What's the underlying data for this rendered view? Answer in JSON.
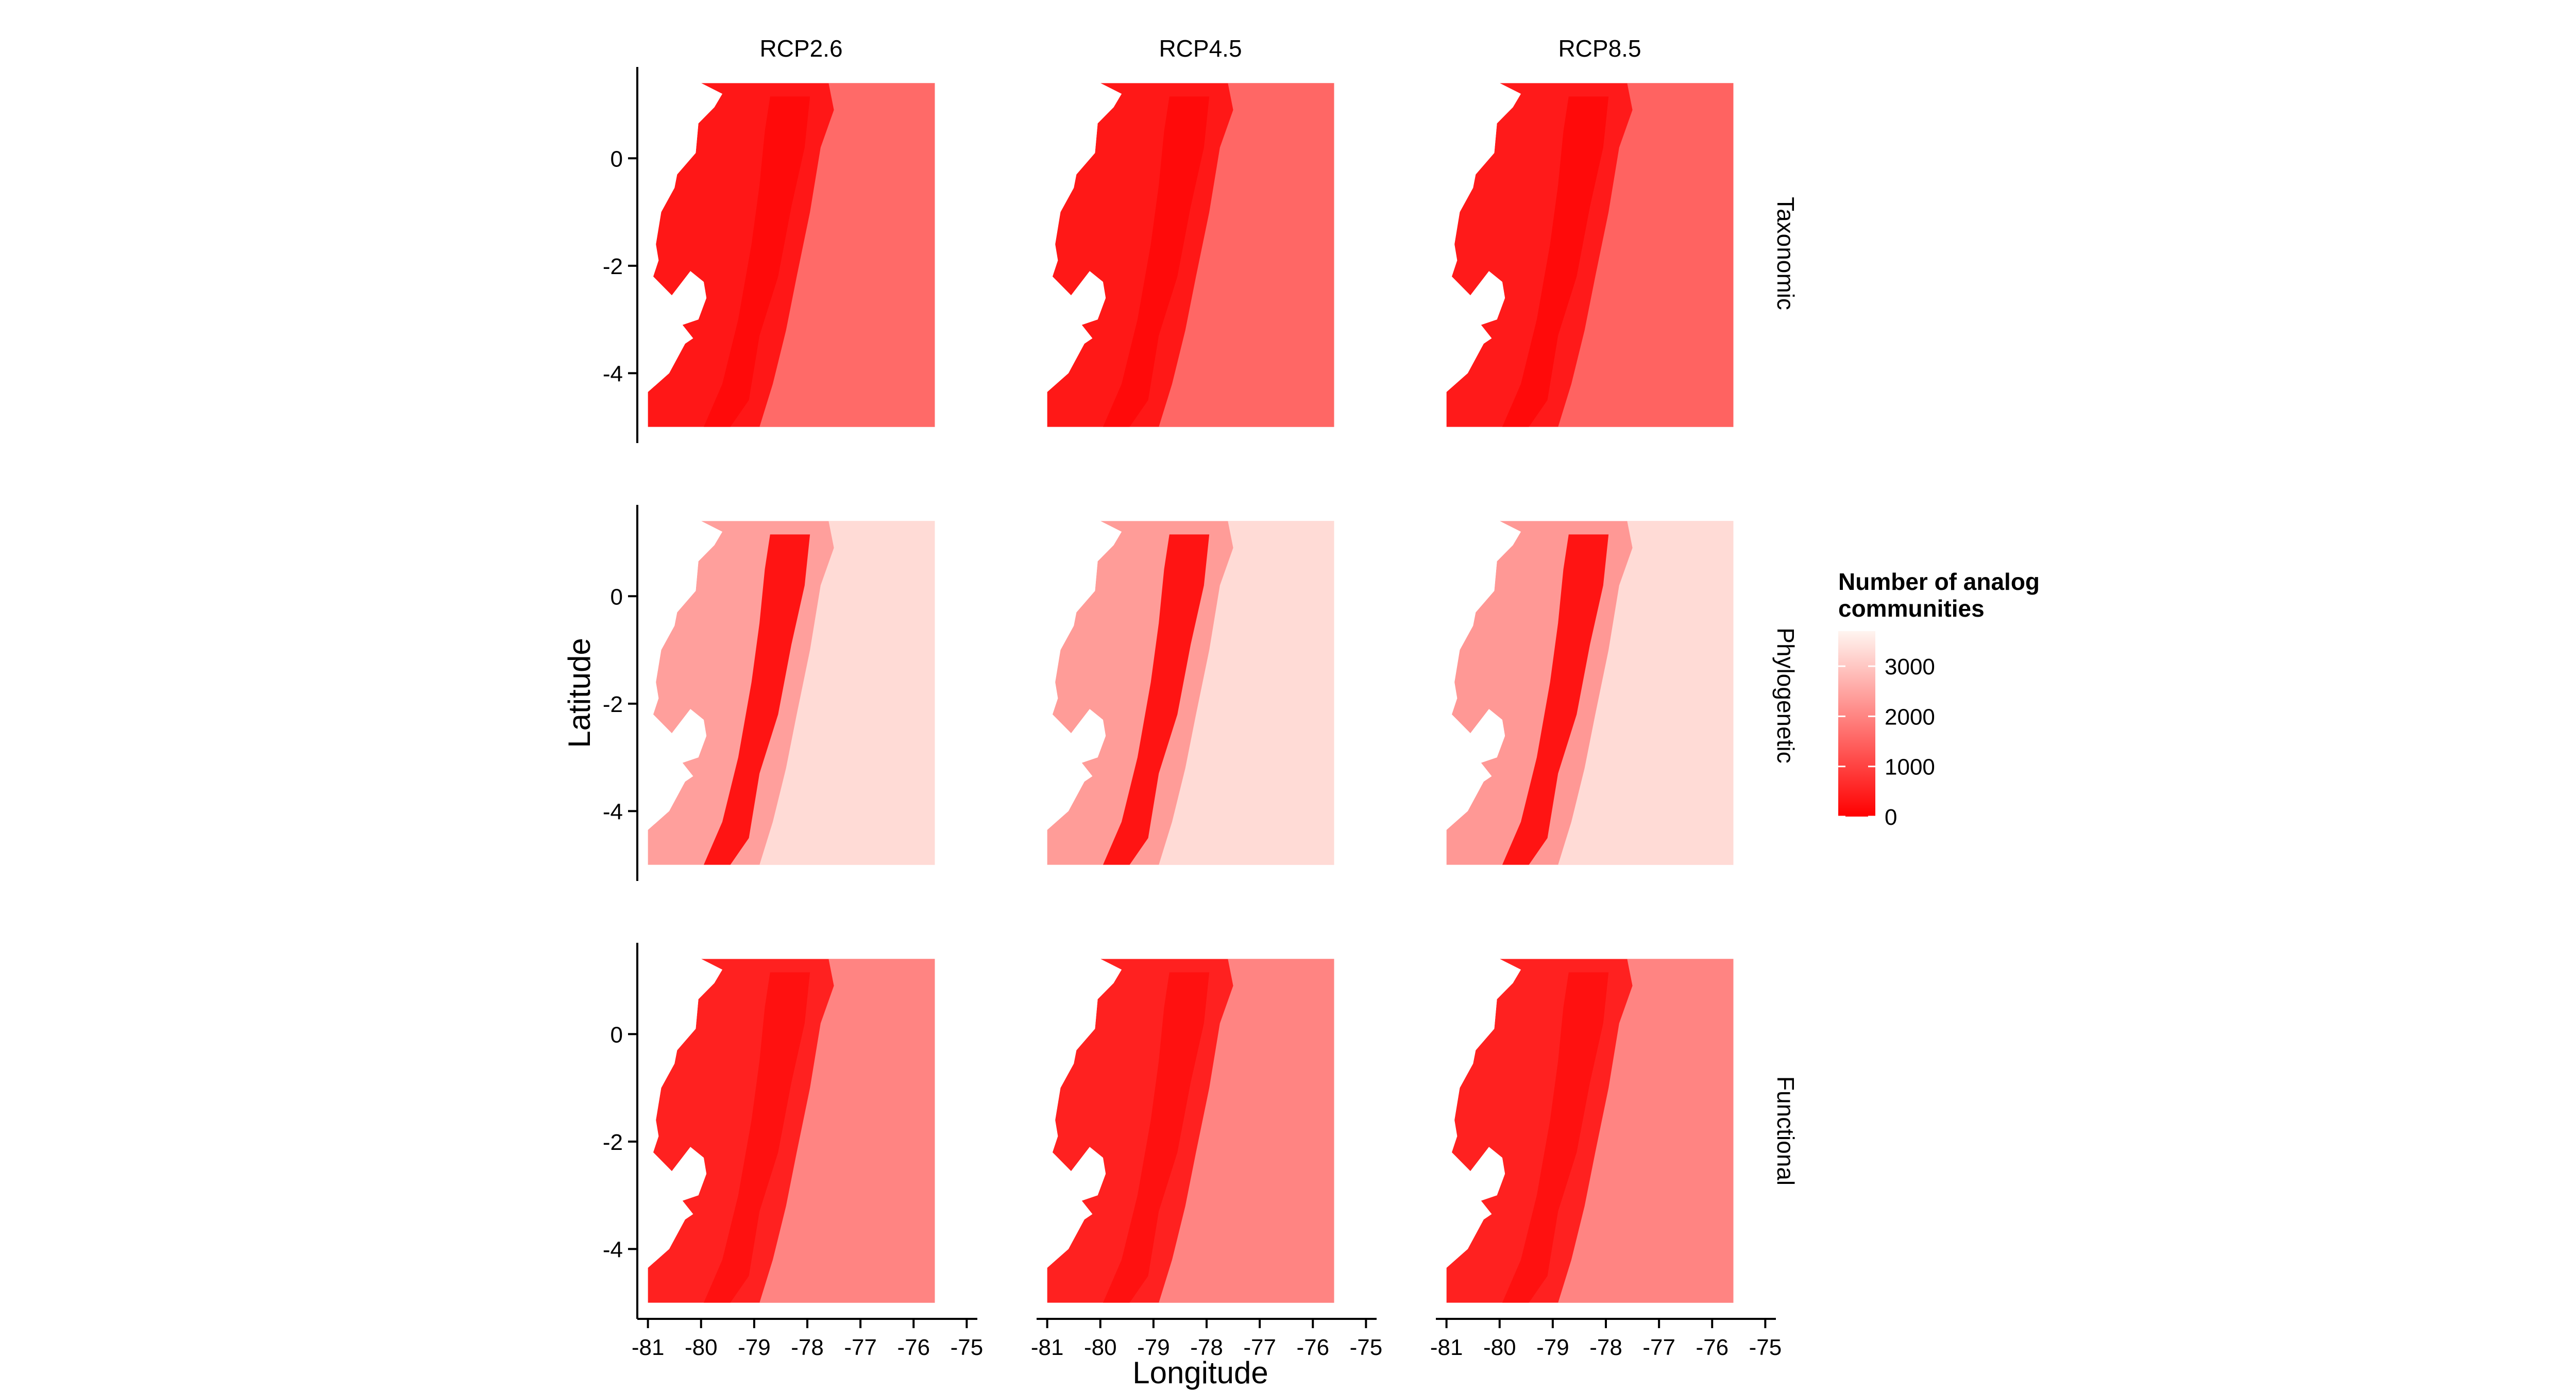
{
  "chart_data": {
    "type": "heatmap",
    "title": "",
    "xlabel": "Longitude",
    "ylabel": "Latitude",
    "x_ticks": [
      -81,
      -80,
      -79,
      -78,
      -77,
      -76,
      -75
    ],
    "y_ticks": [
      0,
      -2,
      -4
    ],
    "xlim": [
      -81.2,
      -74.8
    ],
    "ylim": [
      -5.3,
      1.7
    ],
    "map_extent": {
      "lon": [
        -81.0,
        -75.6
      ],
      "lat": [
        -5.0,
        1.4
      ]
    },
    "columns": [
      "RCP2.6",
      "RCP4.5",
      "RCP8.5"
    ],
    "rows": [
      "Taxonomic",
      "Phylogenetic",
      "Functional"
    ],
    "legend": {
      "title": "Number of analog communities",
      "title_lines": [
        "Number of analog",
        "communities"
      ],
      "ticks": [
        3000,
        2000,
        1000,
        0
      ],
      "range": [
        0,
        3700
      ],
      "color_low": "#ff0000",
      "color_high": "#fff5f0"
    },
    "panels": [
      {
        "row": "Taxonomic",
        "column": "RCP2.6",
        "west_region": 350,
        "andes_ridge": 150,
        "east_lowlands": 1600
      },
      {
        "row": "Taxonomic",
        "column": "RCP4.5",
        "west_region": 360,
        "andes_ridge": 150,
        "east_lowlands": 1550
      },
      {
        "row": "Taxonomic",
        "column": "RCP8.5",
        "west_region": 400,
        "andes_ridge": 150,
        "east_lowlands": 1500
      },
      {
        "row": "Phylogenetic",
        "column": "RCP2.6",
        "west_region": 2400,
        "andes_ridge": 300,
        "east_lowlands": 3300
      },
      {
        "row": "Phylogenetic",
        "column": "RCP4.5",
        "west_region": 2350,
        "andes_ridge": 300,
        "east_lowlands": 3300
      },
      {
        "row": "Phylogenetic",
        "column": "RCP8.5",
        "west_region": 2300,
        "andes_ridge": 300,
        "east_lowlands": 3300
      },
      {
        "row": "Functional",
        "column": "RCP2.6",
        "west_region": 500,
        "andes_ridge": 250,
        "east_lowlands": 2000
      },
      {
        "row": "Functional",
        "column": "RCP4.5",
        "west_region": 500,
        "andes_ridge": 250,
        "east_lowlands": 2000
      },
      {
        "row": "Functional",
        "column": "RCP8.5",
        "west_region": 500,
        "andes_ridge": 250,
        "east_lowlands": 2000
      }
    ]
  }
}
